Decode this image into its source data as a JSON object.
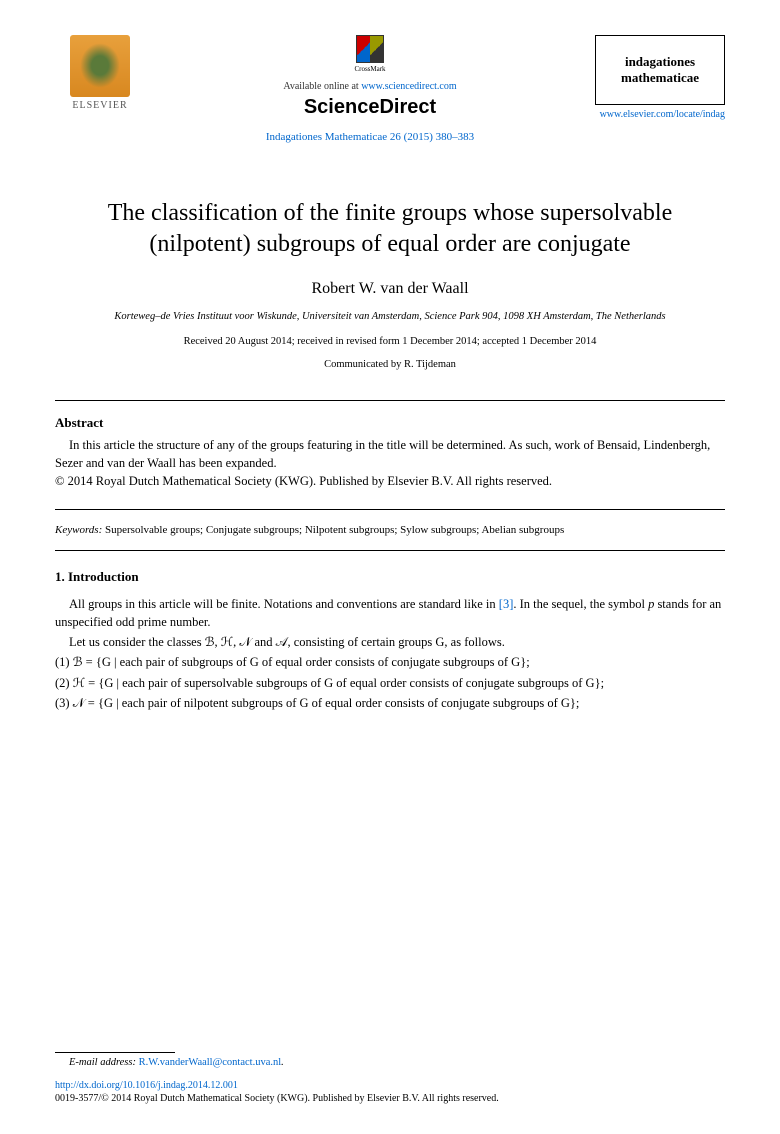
{
  "header": {
    "elsevier_label": "ELSEVIER",
    "crossmark_label": "CrossMark",
    "available_prefix": "Available online at ",
    "available_url": "www.sciencedirect.com",
    "sd_logo": "ScienceDirect",
    "journal_ref": "Indagationes Mathematicae 26 (2015) 380–383",
    "journal_box_line1": "indagationes",
    "journal_box_line2": "mathematicae",
    "locate_url": "www.elsevier.com/locate/indag"
  },
  "title": "The classification of the finite groups whose supersolvable (nilpotent) subgroups of equal order are conjugate",
  "author": "Robert W. van der Waall",
  "affiliation": "Korteweg–de Vries Instituut voor Wiskunde, Universiteit van Amsterdam, Science Park 904, 1098 XH Amsterdam, The Netherlands",
  "dates": "Received 20 August 2014; received in revised form 1 December 2014; accepted 1 December 2014",
  "communicated": "Communicated by R. Tijdeman",
  "abstract": {
    "heading": "Abstract",
    "body": "In this article the structure of any of the groups featuring in the title will be determined. As such, work of Bensaid, Lindenbergh, Sezer and van der Waall has been expanded.",
    "copyright": "© 2014 Royal Dutch Mathematical Society (KWG). Published by Elsevier B.V. All rights reserved."
  },
  "keywords": {
    "label": "Keywords: ",
    "text": "Supersolvable groups; Conjugate subgroups; Nilpotent subgroups; Sylow subgroups; Abelian subgroups"
  },
  "intro": {
    "heading": "1. Introduction",
    "p1_a": "All groups in this article will be finite. Notations and conventions are standard like in ",
    "p1_ref": "[3]",
    "p1_b": ". In the sequel, the symbol ",
    "p1_c": " stands for an unspecified odd prime number.",
    "p2": "Let us consider the classes ℬ, ℋ, 𝒩 and 𝒜, consisting of certain groups G, as follows.",
    "items": [
      "(1) ℬ = {G | each pair of subgroups of G of equal order consists of conjugate subgroups of G};",
      "(2) ℋ = {G | each pair of supersolvable subgroups of G of equal order consists of conjugate subgroups of G};",
      "(3) 𝒩 = {G | each pair of nilpotent subgroups of G of equal order consists of conjugate subgroups of G};"
    ]
  },
  "footer": {
    "email_label": "E-mail address: ",
    "email": "R.W.vanderWaall@contact.uva.nl",
    "email_suffix": ".",
    "doi": "http://dx.doi.org/10.1016/j.indag.2014.12.001",
    "issn": "0019-3577/© 2014 Royal Dutch Mathematical Society (KWG). Published by Elsevier B.V. All rights reserved."
  },
  "colors": {
    "link": "#0066cc",
    "text": "#000000",
    "elsevier_orange": "#e8a03c"
  }
}
